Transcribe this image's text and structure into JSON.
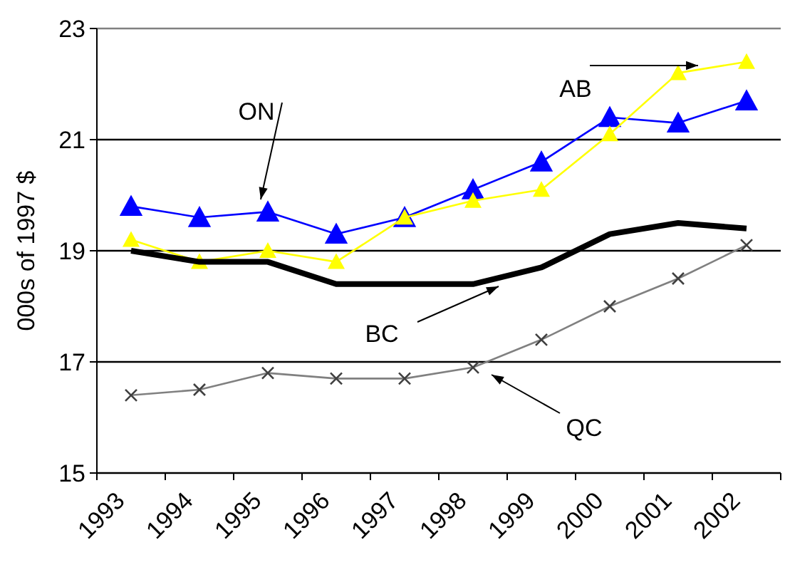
{
  "chart_data": {
    "type": "line",
    "ylabel": "000s of 1997 $",
    "categories": [
      "1993",
      "1994",
      "1995",
      "1996",
      "1997",
      "1998",
      "1999",
      "2000",
      "2001",
      "2002"
    ],
    "ylim": [
      15,
      23
    ],
    "yticks": [
      15,
      17,
      19,
      21,
      23
    ],
    "grid": "y",
    "series": [
      {
        "name": "ON",
        "color": "#0000ff",
        "marker": "triangle",
        "values": [
          19.8,
          19.6,
          19.7,
          19.3,
          19.6,
          20.1,
          20.6,
          21.4,
          21.3,
          21.7
        ]
      },
      {
        "name": "AB",
        "color": "#ffff00",
        "marker": "triangle",
        "values": [
          19.2,
          18.8,
          19.0,
          18.8,
          19.6,
          19.9,
          20.1,
          21.1,
          22.2,
          22.4
        ]
      },
      {
        "name": "BC",
        "color": "#000000",
        "marker": "none",
        "values": [
          19.0,
          18.8,
          18.8,
          18.4,
          18.4,
          18.4,
          18.7,
          19.3,
          19.5,
          19.4
        ]
      },
      {
        "name": "QC",
        "color": "#808080",
        "marker": "cross",
        "values": [
          16.4,
          16.5,
          16.8,
          16.7,
          16.7,
          16.9,
          17.4,
          18.0,
          18.5,
          19.1
        ]
      }
    ]
  }
}
